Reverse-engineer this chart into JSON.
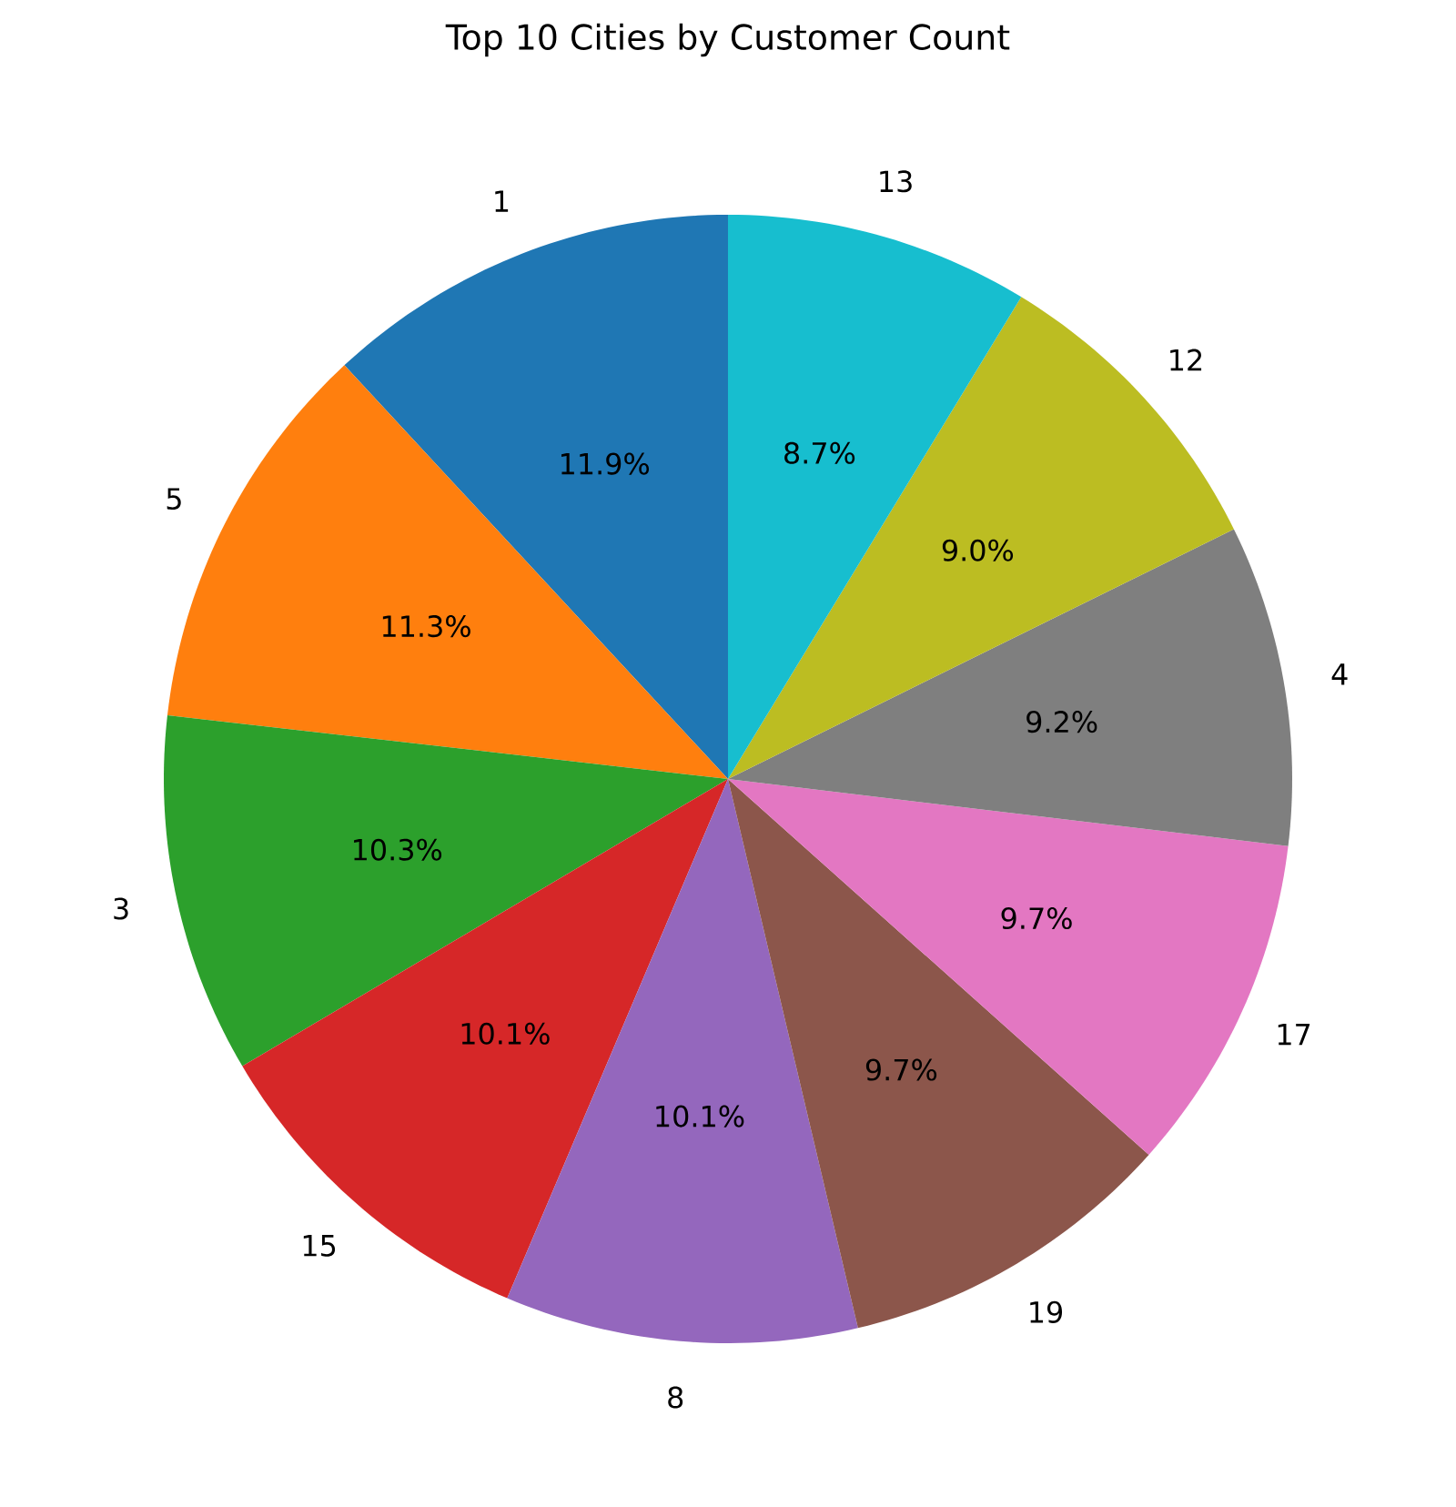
{
  "chart_data": {
    "type": "pie",
    "title": "Top 10 Cities by Customer Count",
    "categories": [
      "1",
      "5",
      "3",
      "15",
      "8",
      "19",
      "17",
      "4",
      "12",
      "13"
    ],
    "values": [
      11.9,
      11.3,
      10.3,
      10.1,
      10.1,
      9.7,
      9.7,
      9.2,
      9.0,
      8.7
    ],
    "colors": [
      "#1f77b4",
      "#ff7f0e",
      "#2ca02c",
      "#d62728",
      "#9467bd",
      "#8c564b",
      "#e377c2",
      "#7f7f7f",
      "#bcbd22",
      "#17becf"
    ],
    "value_labels": [
      "11.9%",
      "11.3%",
      "10.3%",
      "10.1%",
      "10.1%",
      "9.7%",
      "9.7%",
      "9.2%",
      "9.0%",
      "8.7%"
    ]
  }
}
